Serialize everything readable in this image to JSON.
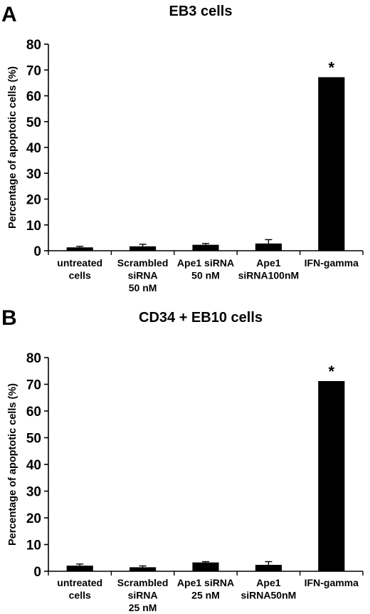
{
  "chart_data": [
    {
      "type": "bar",
      "panel": "A",
      "title": "EB3 cells",
      "ylabel": "Percentage of apoptotic cells (%)",
      "ylim": [
        0,
        80
      ],
      "yticks": [
        0,
        10,
        20,
        30,
        40,
        50,
        60,
        70,
        80
      ],
      "categories": [
        [
          "untreated",
          "cells"
        ],
        [
          "Scrambled",
          "siRNA",
          "50 nM"
        ],
        [
          "Ape1 siRNA",
          "50 nM"
        ],
        [
          "Ape1",
          "siRNA100nM"
        ],
        [
          "IFN-gamma"
        ]
      ],
      "values": [
        1.3,
        1.7,
        2.3,
        2.8,
        67.2
      ],
      "errors": [
        0.4,
        0.8,
        0.5,
        1.5,
        0
      ],
      "annotations": [
        {
          "category_index": 4,
          "text": "*"
        }
      ],
      "grid": false,
      "bar_color": "#000000"
    },
    {
      "type": "bar",
      "panel": "B",
      "title": "CD34 + EB10 cells",
      "ylabel": "Percentage of apoptotic cells (%)",
      "ylim": [
        0,
        80
      ],
      "yticks": [
        0,
        10,
        20,
        30,
        40,
        50,
        60,
        70,
        80
      ],
      "categories": [
        [
          "untreated",
          "cells"
        ],
        [
          "Scrambled",
          "siRNA",
          "25 nM"
        ],
        [
          "Ape1 siRNA",
          "25 nM"
        ],
        [
          "Ape1",
          "siRNA50nM"
        ],
        [
          "IFN-gamma"
        ]
      ],
      "values": [
        2.1,
        1.5,
        3.3,
        2.4,
        71.2
      ],
      "errors": [
        0.6,
        0.5,
        0.3,
        1.2,
        0
      ],
      "annotations": [
        {
          "category_index": 4,
          "text": "*"
        }
      ],
      "grid": false,
      "bar_color": "#000000"
    }
  ]
}
